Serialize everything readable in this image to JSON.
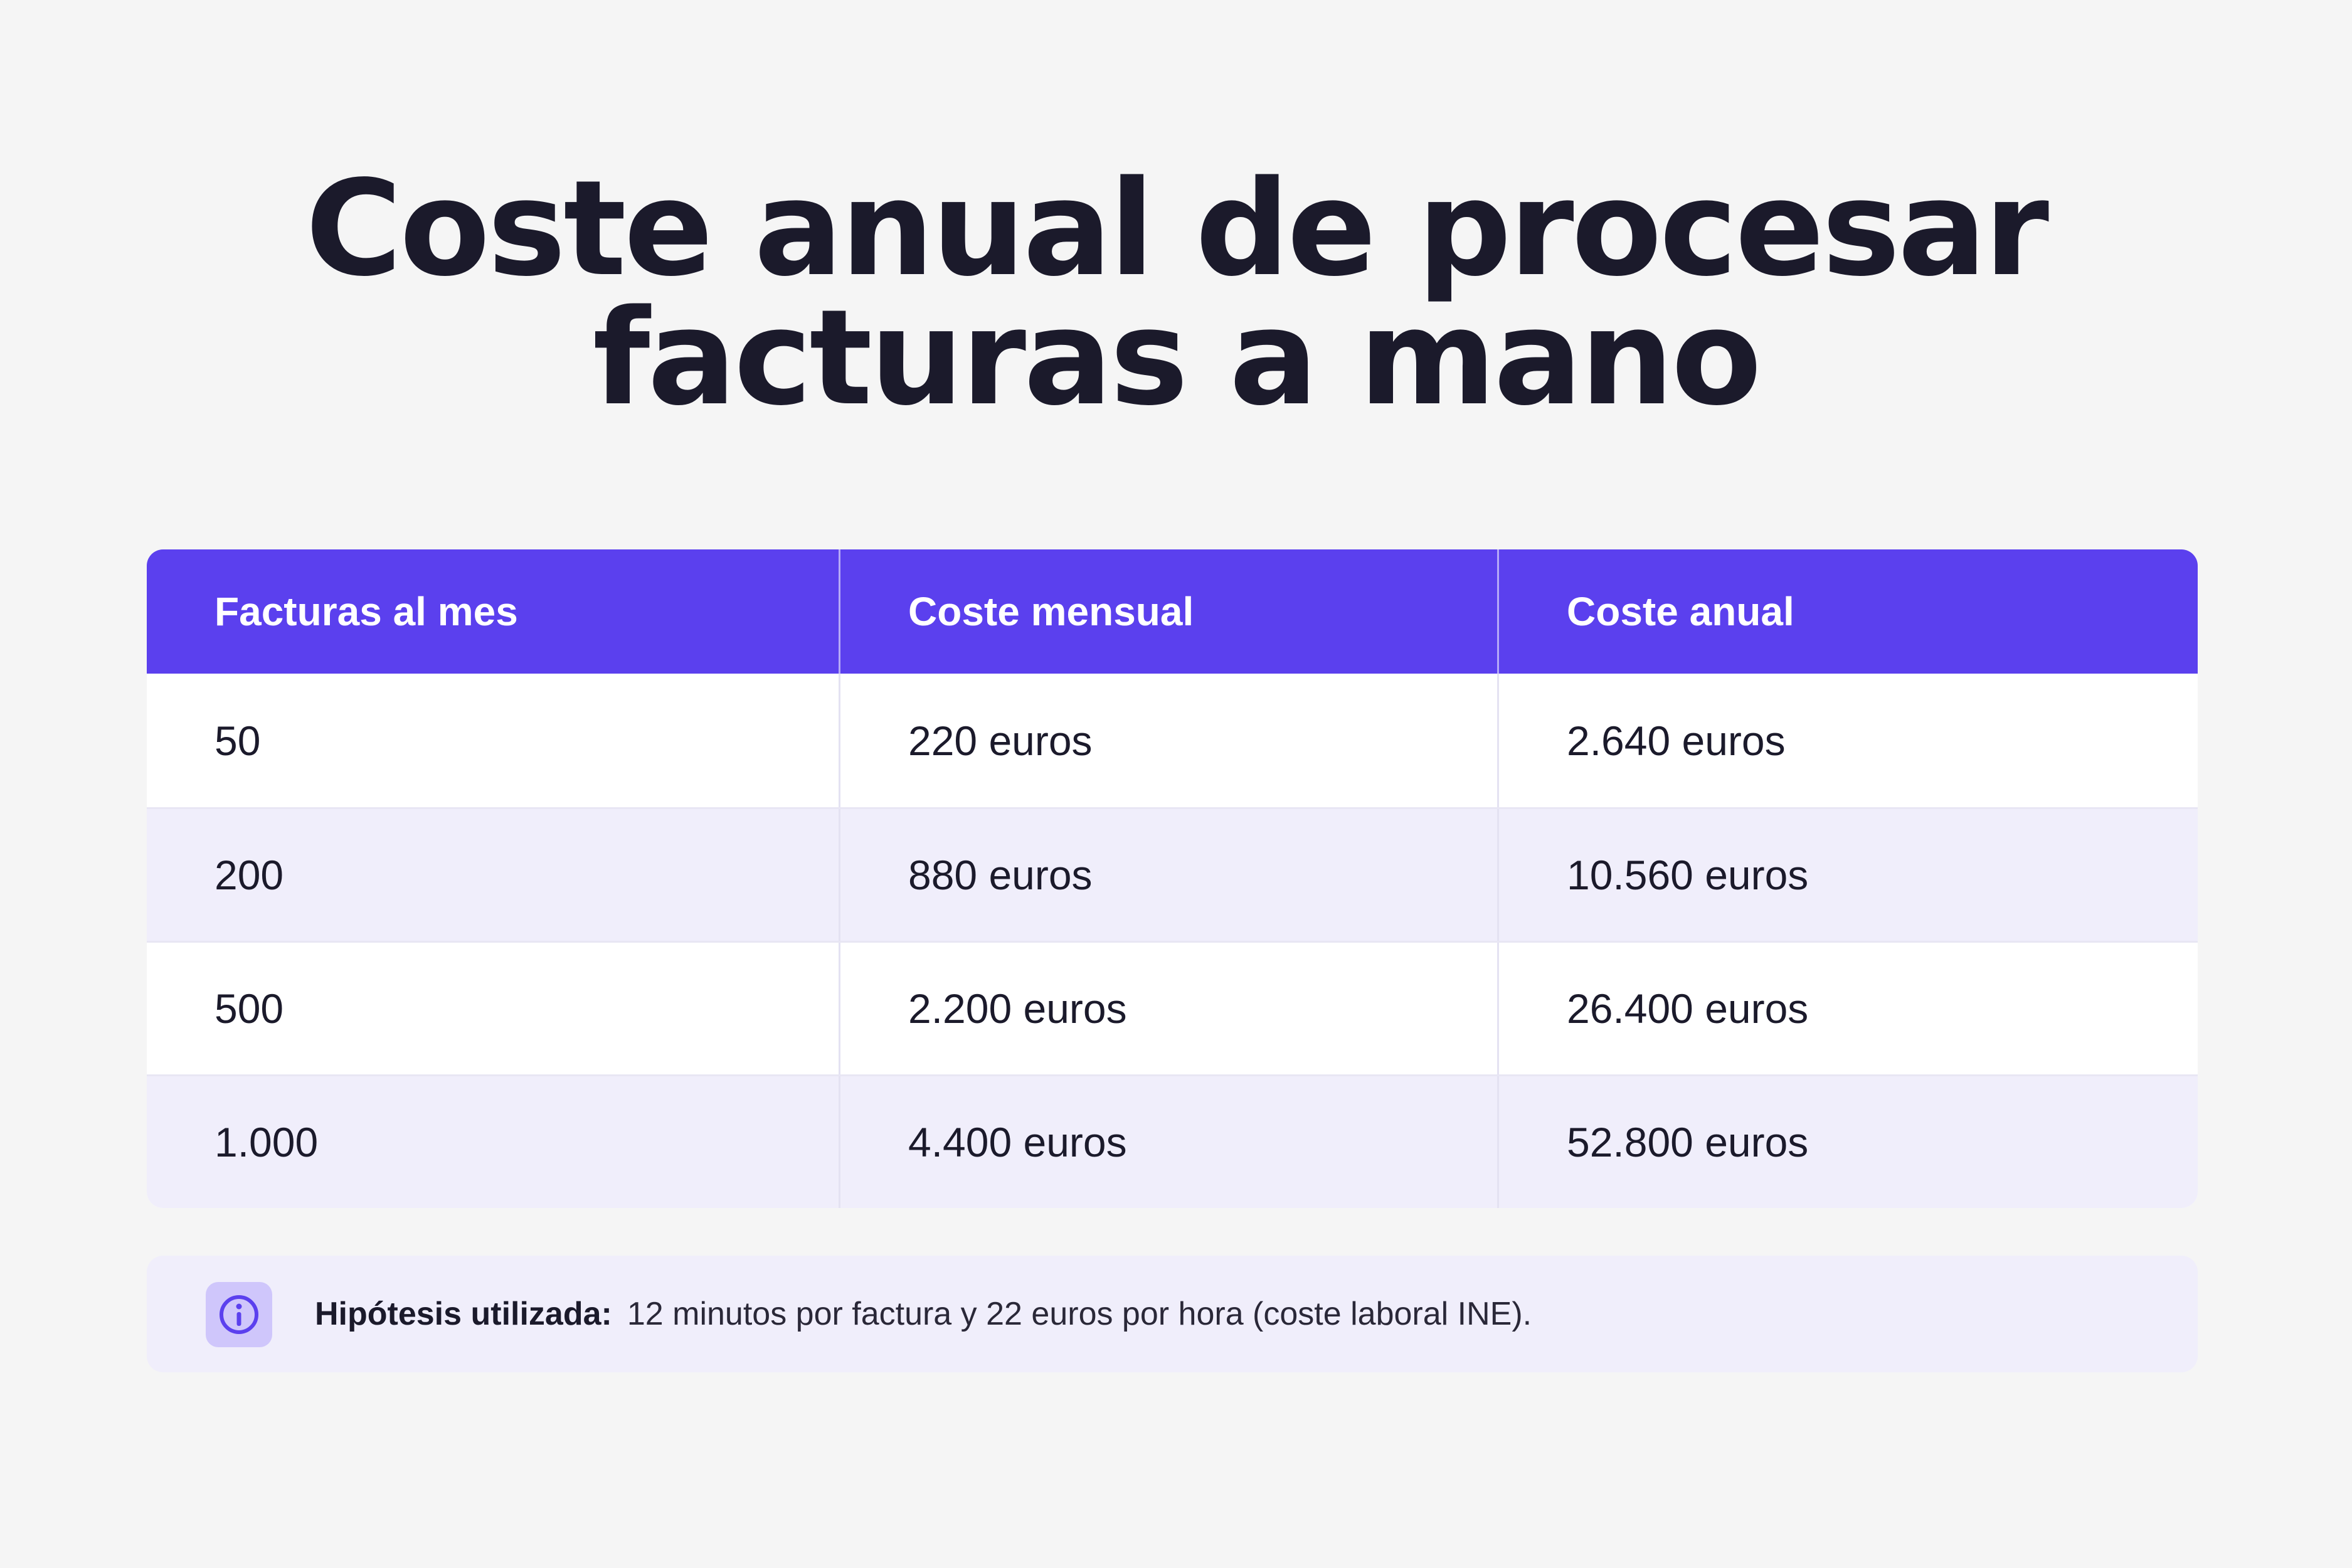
{
  "title_line1": "Coste anual de procesar",
  "title_line2": "facturas a mano",
  "chart_data": {
    "type": "table",
    "columns": [
      "Facturas al mes",
      "Coste mensual",
      "Coste anual"
    ],
    "rows": [
      [
        "50",
        "220 euros",
        "2.640 euros"
      ],
      [
        "200",
        "880 euros",
        "10.560 euros"
      ],
      [
        "500",
        "2.200 euros",
        "26.400 euros"
      ],
      [
        "1.000",
        "4.400 euros",
        "52.800 euros"
      ]
    ]
  },
  "note": {
    "icon": "info-icon",
    "label": "Hipótesis utilizada:",
    "text": "12 minutos por factura y 22 euros por hora (coste laboral INE)."
  },
  "colors": {
    "header": "#5b40ee",
    "row_alt": "#f0eefb",
    "icon_bg": "#cfc6fb",
    "icon_stroke": "#5b40ee"
  }
}
